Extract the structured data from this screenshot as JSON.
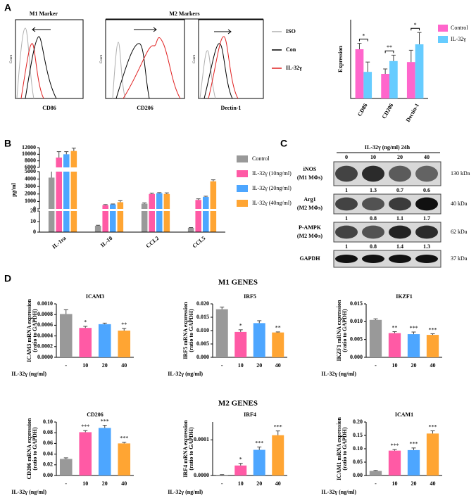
{
  "panels": [
    "A",
    "B",
    "C",
    "D"
  ],
  "flow": {
    "m1_title": "M1 Marker",
    "m2_title": "M2 Markers",
    "ylabel": "Count",
    "markers": [
      "CD86",
      "CD206",
      "Dectin-1"
    ],
    "legend": [
      {
        "name": "ISO",
        "color": "#b0b0b0"
      },
      {
        "name": "Con",
        "color": "#000000"
      },
      {
        "name": "IL-32γ",
        "color": "#e02020"
      }
    ]
  },
  "gene_groups": [
    "M1 GENES",
    "M2 GENES"
  ],
  "blot": {
    "header": "IL-32γ (ng/ml)  24h",
    "lanes": [
      "0",
      "10",
      "20",
      "40"
    ],
    "rows": [
      {
        "label": "iNOS",
        "sublabel": "(M1 MΦs)",
        "size": "130 kDa",
        "quant": [
          1,
          1.3,
          0.7,
          0.6
        ]
      },
      {
        "label": "Arg1",
        "sublabel": "(M2 MΦs)",
        "size": "40 kDa",
        "quant": [
          1,
          0.8,
          1.1,
          1.7
        ]
      },
      {
        "label": "P-AMPK",
        "sublabel": "(M2 MΦs)",
        "size": "62 kDa",
        "quant": [
          1,
          0.8,
          1.4,
          1.3
        ]
      },
      {
        "label": "GAPDH",
        "size": "37 kDa"
      }
    ]
  },
  "chart_data": [
    {
      "type": "grouped_bar",
      "ylabel": "Expression",
      "categories": [
        "CD86",
        "CD206",
        "Dectin-1"
      ],
      "ylim": [
        0,
        80
      ],
      "series": [
        {
          "name": "Control",
          "color": "#ff66cc",
          "values": [
            50,
            25,
            37
          ],
          "errors": [
            6,
            5,
            12
          ]
        },
        {
          "name": "IL-32γ",
          "color": "#66ccff",
          "values": [
            27,
            38,
            55
          ],
          "errors": [
            10,
            6,
            12
          ]
        }
      ],
      "significance": [
        "*",
        "**",
        "*"
      ]
    },
    {
      "type": "broken_bar",
      "ylabel": "pg/ml",
      "categories": [
        "IL-1ra",
        "IL-10",
        "CCL2",
        "CCL5"
      ],
      "segments": [
        {
          "ylim": [
            0,
            20
          ],
          "yticks": [
            0,
            10,
            20
          ]
        },
        {
          "ylim": [
            0,
            5000
          ],
          "yticks": [
            0,
            1000,
            2000,
            3000,
            4000,
            5000
          ]
        },
        {
          "ylim": [
            6000,
            12000
          ],
          "yticks": [
            6000,
            8000,
            10000,
            12000
          ]
        }
      ],
      "series": [
        {
          "name": "Control",
          "color": "#999999",
          "values": [
            4200,
            6,
            700,
            4
          ],
          "errors": [
            900,
            0.5,
            100,
            0.3
          ]
        },
        {
          "name": "IL-32γ (10ng/ml)",
          "color": "#ff5aa5",
          "values": [
            9000,
            500,
            2000,
            1200
          ],
          "errors": [
            1800,
            80,
            120,
            150
          ]
        },
        {
          "name": "IL-32γ (20ng/ml)",
          "color": "#4da6ff",
          "values": [
            10000,
            600,
            2100,
            1600
          ],
          "errors": [
            800,
            60,
            80,
            100
          ]
        },
        {
          "name": "IL-32γ (40ng/ml)",
          "color": "#ffa533",
          "values": [
            11000,
            900,
            2000,
            3700
          ],
          "errors": [
            900,
            200,
            150,
            200
          ]
        }
      ]
    },
    {
      "type": "bar",
      "title": "ICAM3",
      "ylabel": "ICAM3  mRNA expression",
      "ylabel2": "(ratio  to GAPDH)",
      "xlabel": "IL-32γ  (ng/ml)",
      "categories": [
        "-",
        "10",
        "20",
        "40"
      ],
      "colors": [
        "#999999",
        "#ff5aa5",
        "#4da6ff",
        "#ffa533"
      ],
      "values": [
        0.00081,
        0.00055,
        0.00062,
        0.0005
      ],
      "errors": [
        8e-05,
        3e-05,
        2e-05,
        4e-05
      ],
      "stars": [
        null,
        "*",
        null,
        "**"
      ],
      "ylim": [
        0,
        0.001
      ],
      "yticks": [
        {
          "value": 0,
          "label": "0.0000"
        },
        {
          "value": 0.0002,
          "label": "0.0002"
        },
        {
          "value": 0.0004,
          "label": "0.0004"
        },
        {
          "value": 0.0006,
          "label": "0.0006"
        },
        {
          "value": 0.0008,
          "label": "0.0008"
        },
        {
          "value": 0.001,
          "label": "0.0010"
        }
      ]
    },
    {
      "type": "bar",
      "title": "IRF5",
      "ylabel": "IRF5  mRNA expression",
      "ylabel2": "(ratio  to GAPDH)",
      "xlabel": "IL-32γ  (ng/ml)",
      "categories": [
        "-",
        "10",
        "20",
        "40"
      ],
      "colors": [
        "#999999",
        "#ff5aa5",
        "#4da6ff",
        "#ffa533"
      ],
      "values": [
        0.018,
        0.0095,
        0.0128,
        0.0093
      ],
      "errors": [
        0.0008,
        0.0008,
        0.0009,
        0.0002
      ],
      "stars": [
        null,
        "*",
        null,
        "**"
      ],
      "ylim": [
        0,
        0.02
      ],
      "yticks": [
        {
          "value": 0,
          "label": "0.000"
        },
        {
          "value": 0.005,
          "label": "0.005"
        },
        {
          "value": 0.01,
          "label": "0.010"
        },
        {
          "value": 0.015,
          "label": "0.015"
        },
        {
          "value": 0.02,
          "label": "0.020"
        }
      ]
    },
    {
      "type": "bar",
      "title": "IKZF1",
      "ylabel": "IKZF1  mRNA expression",
      "ylabel2": "(ratio  to GAPDH)",
      "xlabel": "IL-32γ  (ng/ml)",
      "categories": [
        "-",
        "10",
        "20",
        "40"
      ],
      "colors": [
        "#999999",
        "#ff5aa5",
        "#4da6ff",
        "#ffa533"
      ],
      "values": [
        0.0105,
        0.0068,
        0.0065,
        0.0063
      ],
      "errors": [
        0.0003,
        0.0004,
        0.0006,
        0.0003
      ],
      "stars": [
        null,
        "**",
        "***",
        "***"
      ],
      "ylim": [
        0,
        0.015
      ],
      "yticks": [
        {
          "value": 0,
          "label": "0.000"
        },
        {
          "value": 0.005,
          "label": "0.005"
        },
        {
          "value": 0.01,
          "label": "0.010"
        },
        {
          "value": 0.015,
          "label": "0.015"
        }
      ]
    },
    {
      "type": "bar",
      "title": "CD206",
      "ylabel": "CD206  mRNA expression",
      "ylabel2": "(ratio  to GAPDH)",
      "xlabel": "IL-32γ  (ng/ml)",
      "categories": [
        "-",
        "10",
        "20",
        "40"
      ],
      "colors": [
        "#999999",
        "#ff5aa5",
        "#4da6ff",
        "#ffa533"
      ],
      "values": [
        0.031,
        0.081,
        0.089,
        0.06
      ],
      "errors": [
        0.002,
        0.003,
        0.005,
        0.002
      ],
      "stars": [
        null,
        "***",
        "***",
        "***"
      ],
      "ylim": [
        0,
        0.1
      ],
      "yticks": [
        {
          "value": 0,
          "label": "0.00"
        },
        {
          "value": 0.02,
          "label": "0.02"
        },
        {
          "value": 0.04,
          "label": "0.04"
        },
        {
          "value": 0.06,
          "label": "0.06"
        },
        {
          "value": 0.08,
          "label": "0.08"
        },
        {
          "value": 0.1,
          "label": "0.10"
        }
      ]
    },
    {
      "type": "bar",
      "title": "IRF4",
      "ylabel": "IRF4  mRNA expression",
      "ylabel2": "(ratio  to GAPDH)",
      "xlabel": "IL-32γ  (ng/ml)",
      "categories": [
        "-",
        "10",
        "20",
        "40"
      ],
      "colors": [
        "#999999",
        "#ff5aa5",
        "#4da6ff",
        "#ffa533"
      ],
      "values": [
        1.5e-06,
        2.8e-05,
        7.2e-05,
        0.000113
      ],
      "errors": [
        1e-06,
        6e-06,
        8e-06,
        1.2e-05
      ],
      "stars": [
        null,
        "*",
        "***",
        "***"
      ],
      "ylim": [
        0,
        0.00015
      ],
      "yticks": [
        {
          "value": 0,
          "label": "0.0000"
        },
        {
          "value": 0.0001,
          "label": "0.0001"
        }
      ]
    },
    {
      "type": "bar",
      "title": "ICAM1",
      "ylabel": "ICAM1  mRNA expression",
      "ylabel2": "(ratio  to GAPDH)",
      "xlabel": "IL-32γ  (ng/ml)",
      "categories": [
        "-",
        "10",
        "20",
        "40"
      ],
      "colors": [
        "#999999",
        "#ff5aa5",
        "#4da6ff",
        "#ffa533"
      ],
      "values": [
        0.017,
        0.093,
        0.095,
        0.157
      ],
      "errors": [
        0.002,
        0.004,
        0.008,
        0.01
      ],
      "stars": [
        null,
        "***",
        "***",
        "***"
      ],
      "ylim": [
        0,
        0.2
      ],
      "yticks": [
        {
          "value": 0,
          "label": "0.00"
        },
        {
          "value": 0.05,
          "label": "0.05"
        },
        {
          "value": 0.1,
          "label": "0.10"
        },
        {
          "value": 0.15,
          "label": "0.15"
        },
        {
          "value": 0.2,
          "label": "0.20"
        }
      ]
    }
  ]
}
